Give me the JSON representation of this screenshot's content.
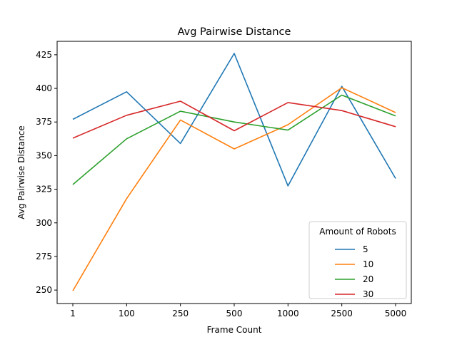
{
  "chart_data": {
    "type": "line",
    "title": "Avg Pairwise Distance",
    "xlabel": "Frame Count",
    "ylabel": "Avg Pairwise Distance",
    "categories": [
      "1",
      "100",
      "250",
      "500",
      "1000",
      "2500",
      "5000"
    ],
    "ylim": [
      240,
      435
    ],
    "yticks": [
      250,
      275,
      300,
      325,
      350,
      375,
      400,
      425
    ],
    "grid": false,
    "legend": {
      "title": "Amount of Robots",
      "placement": "lower-right"
    },
    "series": [
      {
        "name": "5",
        "color": "#1f77b4",
        "values": [
          377,
          397.5,
          359,
          426,
          327.5,
          401.5,
          333
        ]
      },
      {
        "name": "10",
        "color": "#ff7f0e",
        "values": [
          249.5,
          318,
          376.5,
          355,
          373,
          400.5,
          382
        ]
      },
      {
        "name": "20",
        "color": "#2ca02c",
        "values": [
          328.5,
          362.5,
          383,
          375,
          369,
          395,
          379.5
        ]
      },
      {
        "name": "30",
        "color": "#d62728",
        "values": [
          363,
          380,
          390.5,
          368.5,
          389.5,
          383.5,
          371.5
        ]
      }
    ]
  }
}
